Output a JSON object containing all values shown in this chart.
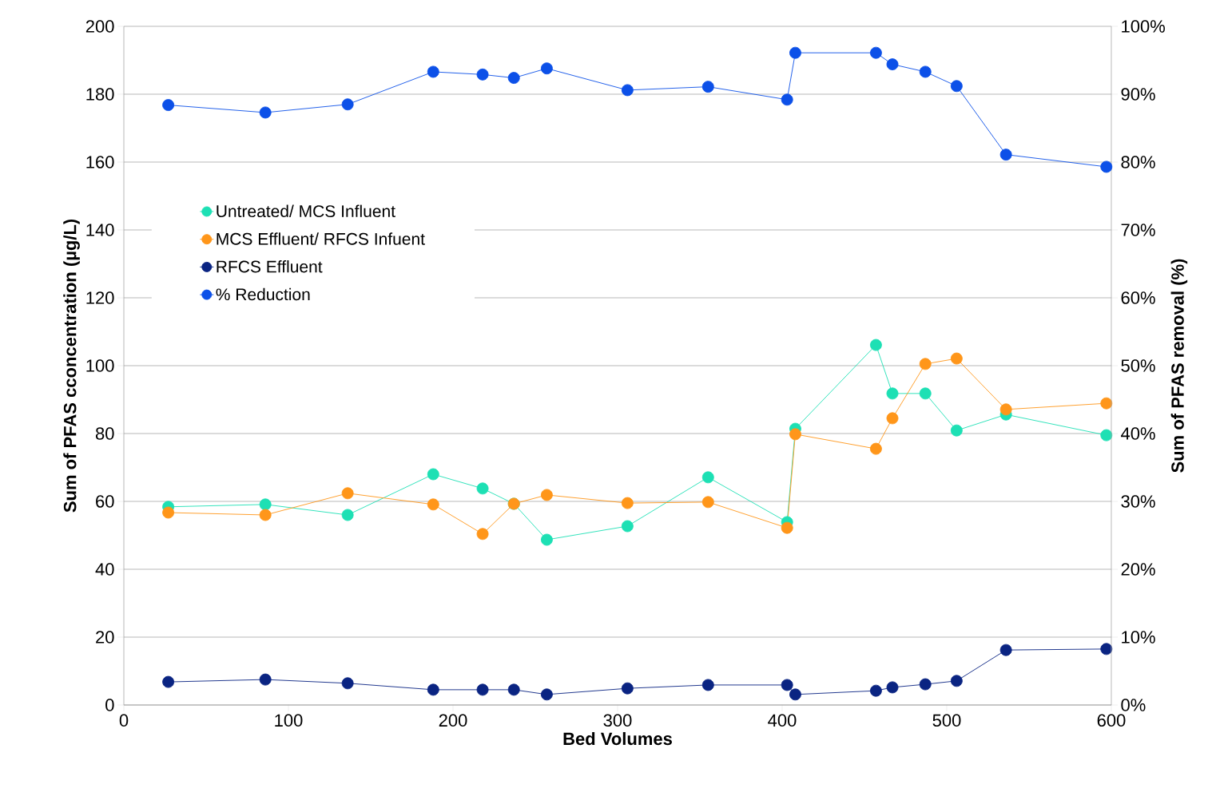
{
  "chart_data": {
    "type": "line",
    "xlabel": "Bed Volumes",
    "ylabel": "Sum of PFAS cconcentration (µg/L)",
    "y2label": "Sum of PFAS removal (%)",
    "x": [
      27,
      86,
      136,
      188,
      218,
      237,
      257,
      306,
      355,
      403,
      408,
      457,
      467,
      487,
      506,
      536,
      597
    ],
    "series": [
      {
        "name": "Untreated/ MCS Influent",
        "color": "#1de0b4",
        "values": [
          58.4,
          59.1,
          56,
          68,
          63.8,
          59.3,
          48.7,
          52.7,
          67.1,
          53.9,
          81.4,
          106.1,
          91.8,
          91.8,
          80.9,
          85.6,
          79.5
        ]
      },
      {
        "name": "MCS Effluent/ RFCS Infuent",
        "color": "#ff961a",
        "values": [
          56.7,
          56,
          62.4,
          59.1,
          50.4,
          59.3,
          61.9,
          59.5,
          59.8,
          52.2,
          79.8,
          75.5,
          84.5,
          100.5,
          102.1,
          87.1,
          88.9
        ]
      },
      {
        "name": "RFCS Effluent",
        "color": "#0a2482",
        "values": [
          6.8,
          7.5,
          6.4,
          4.5,
          4.5,
          4.5,
          3.1,
          4.9,
          5.9,
          5.9,
          3.1,
          4.2,
          5.2,
          6.1,
          7.1,
          16.2,
          16.5
        ]
      },
      {
        "name": "% Reduction",
        "color": "#0c50e8",
        "axis": "y2",
        "values": [
          88.4,
          87.3,
          88.5,
          93.3,
          92.9,
          92.4,
          93.8,
          90.6,
          91.1,
          89.2,
          96.1,
          96.1,
          94.4,
          93.3,
          91.2,
          81.1,
          79.3
        ]
      }
    ],
    "xlim": [
      0,
      600
    ],
    "xticks": [
      0,
      100,
      200,
      300,
      400,
      500,
      600
    ],
    "ylim": [
      0,
      200
    ],
    "yticks": [
      0,
      20,
      40,
      60,
      80,
      100,
      120,
      140,
      160,
      180,
      200
    ],
    "y2lim": [
      0,
      100
    ],
    "y2ticks": [
      {
        "value": 0,
        "label": "0%"
      },
      {
        "value": 10,
        "label": "10%"
      },
      {
        "value": 20,
        "label": "20%"
      },
      {
        "value": 30,
        "label": "30%"
      },
      {
        "value": 40,
        "label": "40%"
      },
      {
        "value": 50,
        "label": "50%"
      },
      {
        "value": 60,
        "label": "60%"
      },
      {
        "value": 70,
        "label": "70%"
      },
      {
        "value": 80,
        "label": "80%"
      },
      {
        "value": 90,
        "label": "90%"
      },
      {
        "value": 100,
        "label": "100%"
      }
    ],
    "grid": "y",
    "legend": "top left",
    "marker": "circle",
    "line_style": "solid"
  }
}
